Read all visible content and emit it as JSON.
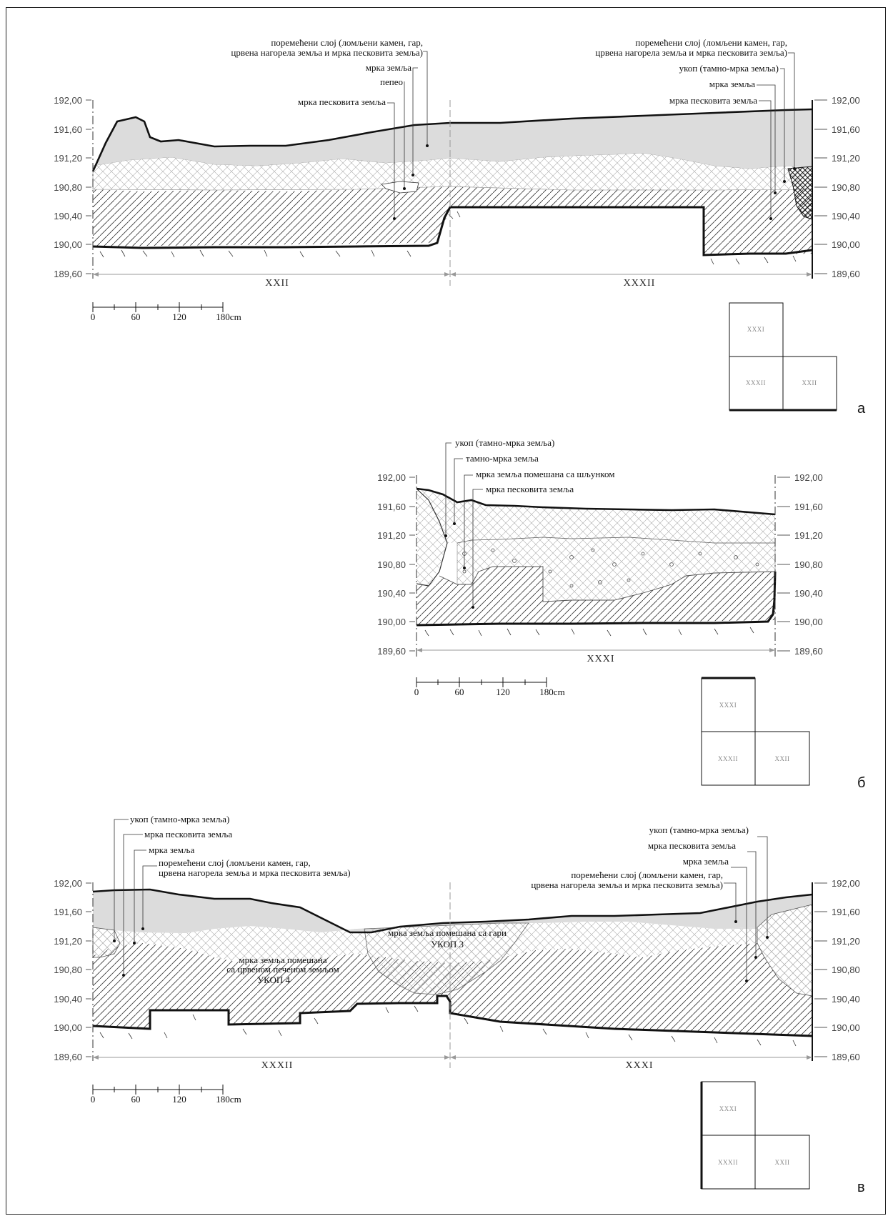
{
  "elevation_ticks": [
    "192,00",
    "191,60",
    "191,20",
    "190,80",
    "190,40",
    "190,00",
    "189,60"
  ],
  "scale": {
    "ticks": [
      "0",
      "60",
      "120",
      "180cm"
    ]
  },
  "grid_labels": {
    "top": "XXXI",
    "bottom_left": "XXXII",
    "bottom_right": "XXII"
  },
  "profiles": [
    {
      "letter": "а",
      "sections": [
        "XXII",
        "XXXII"
      ],
      "labels": [
        "поремећени слој (ломљени камен, гар,",
        "црвена нагорела земља и мрка песковита земља)",
        "мрка земља",
        "пепео",
        "мрка песковита земља",
        "поремећени слој (ломљени камен, гар,",
        "црвена нагорела земља и мрка песковита земља)",
        "укоп (тамно-мрка земља)",
        "мрка земља",
        "мрка песковита земља"
      ]
    },
    {
      "letter": "б",
      "sections": [
        "XXXI"
      ],
      "labels": [
        "укоп (тамно-мрка земља)",
        "тамно-мрка земља",
        "мрка земља помешана са шљунком",
        "мрка песковита земља"
      ]
    },
    {
      "letter": "в",
      "sections": [
        "XXXII",
        "XXXI"
      ],
      "labels": [
        "укоп (тамно-мрка земља)",
        "мрка песковита земља",
        "мрка земља",
        "поремећени слој (ломљени камен, гар,",
        "црвена нагорела земља и мрка песковита земља)",
        "укоп (тамно-мрка земља)",
        "мрка песковита земља",
        "мрка земља",
        "поремећени слој (ломљени камен, гар,",
        "црвена нагорела земља и мрка песковита земља)",
        "мрка земља помешана са гари",
        "УКОП 3",
        "мрка земља помешана",
        "са црвеном печеном земљом",
        "УКОП 4"
      ]
    }
  ]
}
